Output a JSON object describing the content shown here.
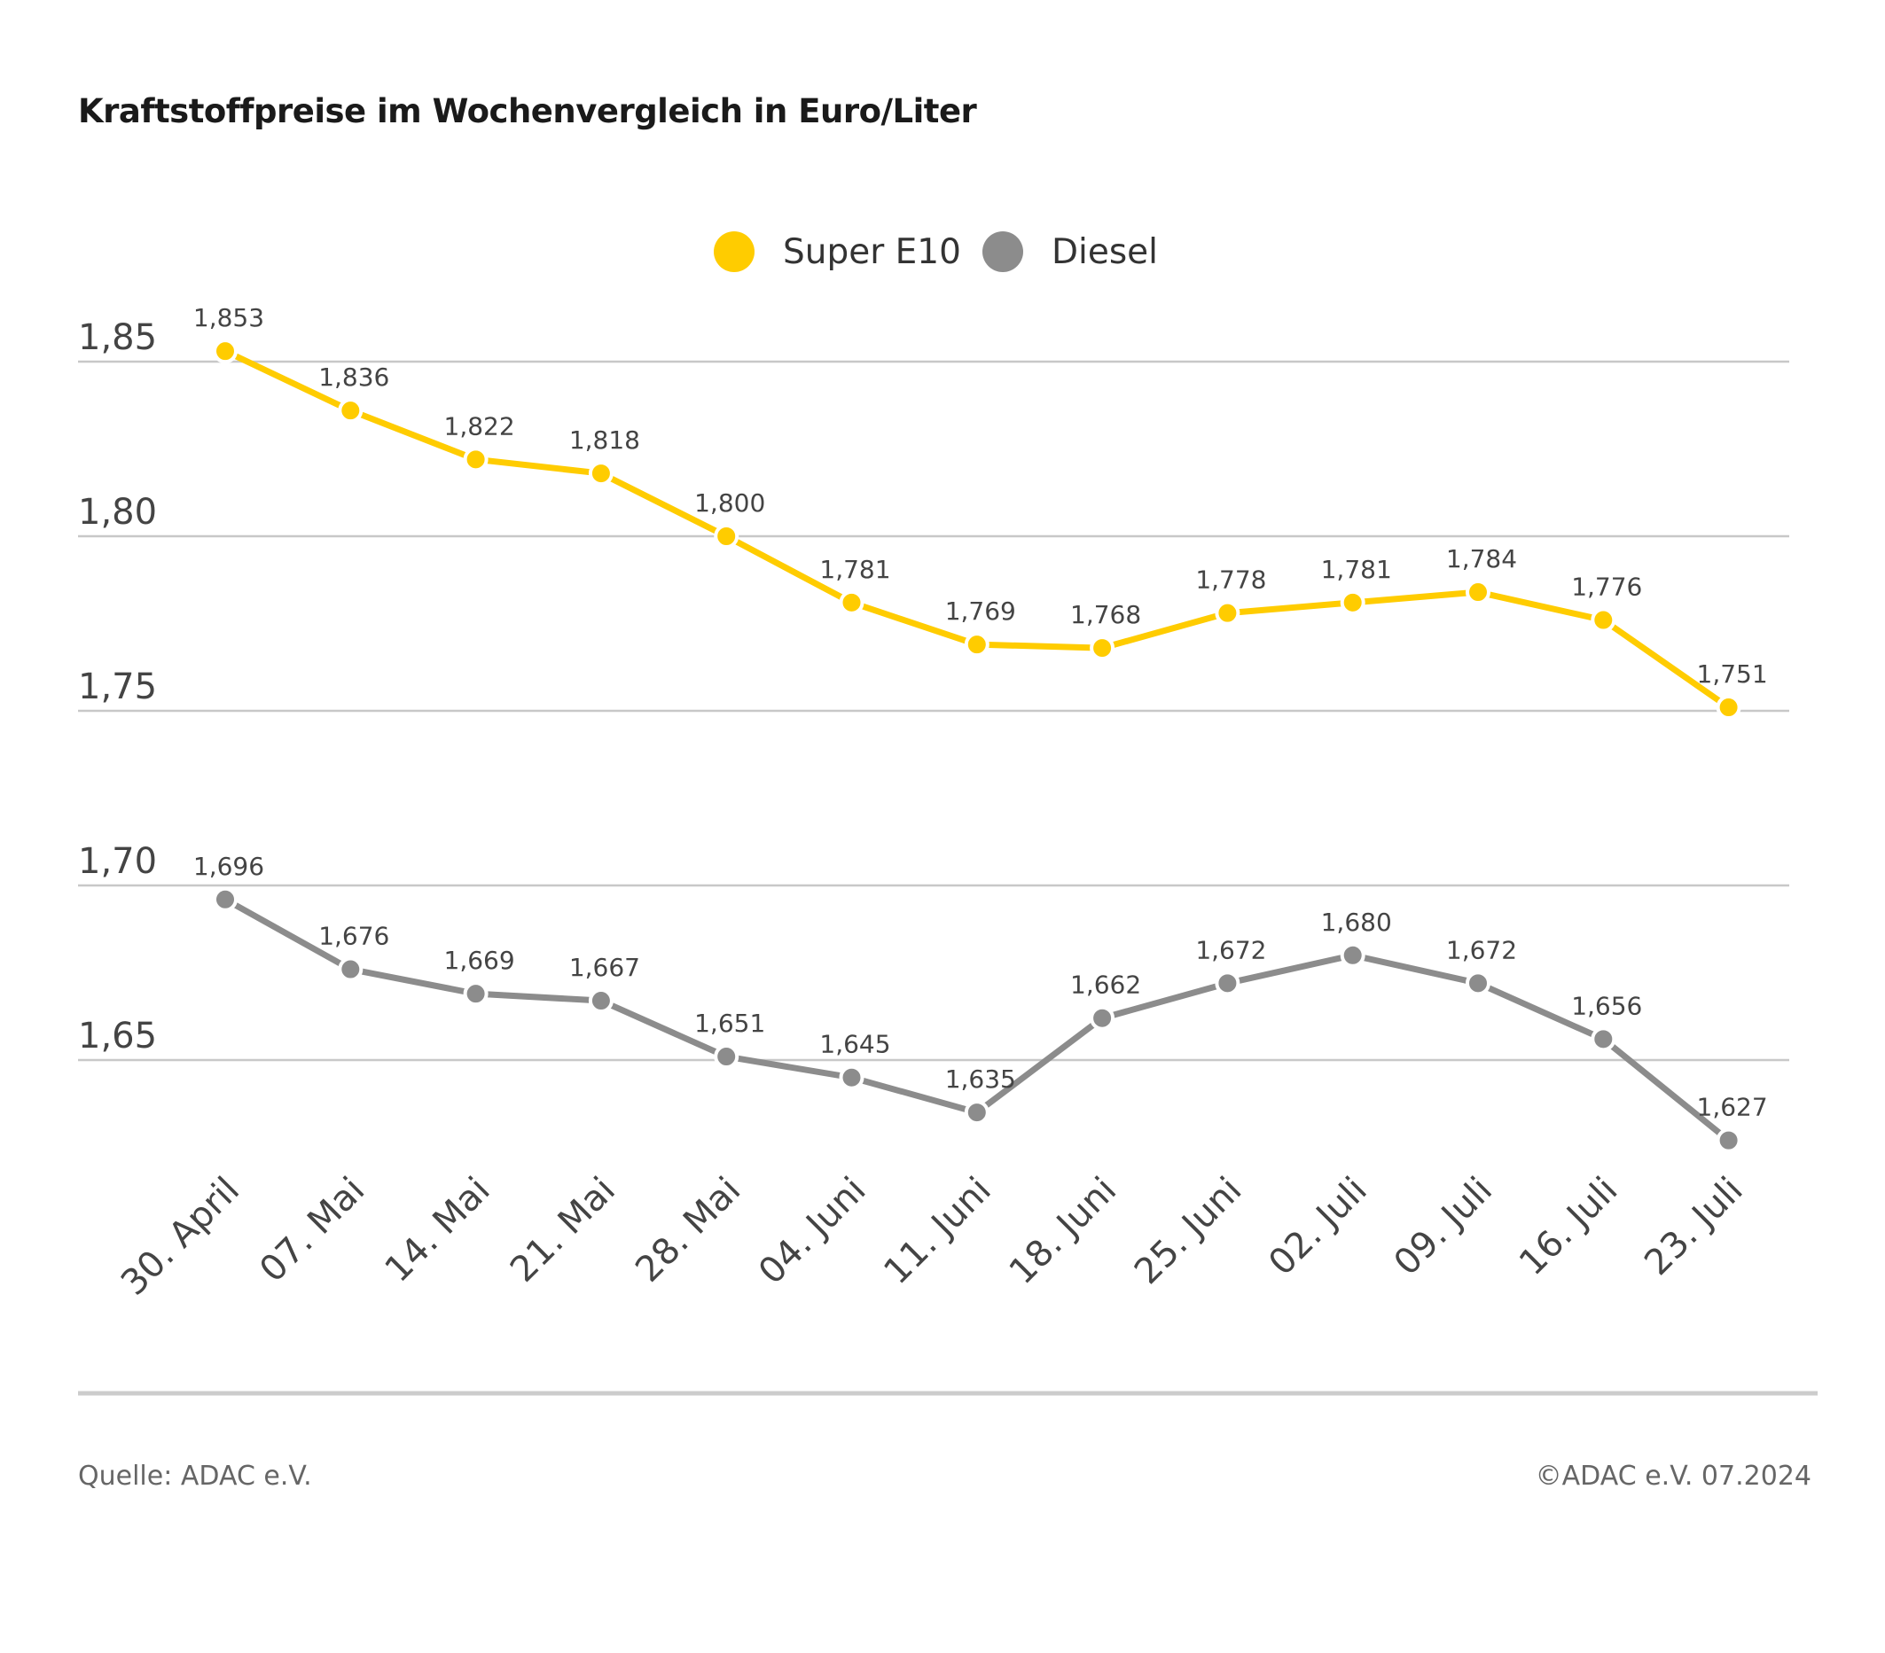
{
  "chart_data": {
    "type": "line",
    "title": "Kraftstoffpreise im Wochenvergleich in Euro/Liter",
    "categories": [
      "30. April",
      "07. Mai",
      "14. Mai",
      "21. Mai",
      "28. Mai",
      "04. Juni",
      "11. Juni",
      "18. Juni",
      "25. Juni",
      "02. Juli",
      "09. Juli",
      "16. Juli",
      "23. Juli"
    ],
    "series": [
      {
        "name": "Super E10",
        "color": "#FFCC00",
        "values": [
          1.853,
          1.836,
          1.822,
          1.818,
          1.8,
          1.781,
          1.769,
          1.768,
          1.778,
          1.781,
          1.784,
          1.776,
          1.751
        ],
        "labels": [
          "1,853",
          "1,836",
          "1,822",
          "1,818",
          "1,800",
          "1,781",
          "1,769",
          "1,768",
          "1,778",
          "1,781",
          "1,784",
          "1,776",
          "1,751"
        ]
      },
      {
        "name": "Diesel",
        "color": "#8C8C8C",
        "values": [
          1.696,
          1.676,
          1.669,
          1.667,
          1.651,
          1.645,
          1.635,
          1.662,
          1.672,
          1.68,
          1.672,
          1.656,
          1.627
        ],
        "labels": [
          "1,696",
          "1,676",
          "1,669",
          "1,667",
          "1,651",
          "1,645",
          "1,635",
          "1,662",
          "1,672",
          "1,680",
          "1,672",
          "1,656",
          "1,627"
        ]
      }
    ],
    "y_ticks": [
      1.85,
      1.8,
      1.75,
      1.7,
      1.65
    ],
    "y_tick_labels": [
      "1,85",
      "1,80",
      "1,75",
      "1,70",
      "1,65"
    ],
    "ylim": [
      1.65,
      1.85
    ],
    "xlabel": "",
    "ylabel": "",
    "grid": true,
    "legend": "top-center"
  },
  "footer": {
    "source": "Quelle: ADAC e.V.",
    "copyright": "©ADAC e.V. 07.2024"
  }
}
